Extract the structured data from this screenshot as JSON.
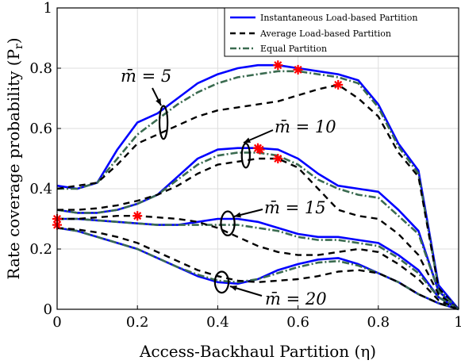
{
  "chart_data": {
    "type": "line",
    "xlabel": "Access-Backhaul Partition (η)",
    "ylabel": "Rate coverage probability (P_r)",
    "ylabel_main": "Rate coverage probability (P",
    "ylabel_sub": "r",
    "ylabel_close": ")",
    "xlim": [
      0,
      1
    ],
    "ylim": [
      0,
      1
    ],
    "xticks": [
      "0",
      "0.2",
      "0.4",
      "0.6",
      "0.8",
      "1"
    ],
    "yticks": [
      "0",
      "0.2",
      "0.4",
      "0.6",
      "0.8",
      "1"
    ],
    "grid": true,
    "legend": {
      "position": "top-right",
      "entries": [
        "Instantaneous Load-based Partition",
        "Average Load-based Partition",
        "Equal Partition"
      ]
    },
    "colors": {
      "instantaneous": "#0000ff",
      "average": "#000000",
      "equal": "#3a6b50",
      "marker": "#ff0000"
    },
    "annotations": [
      {
        "label": "m̄ = 5"
      },
      {
        "label": "m̄ = 10"
      },
      {
        "label": "m̄ = 15"
      },
      {
        "label": "m̄ = 20"
      }
    ],
    "series": [
      {
        "group": "m=5",
        "style": "instantaneous",
        "x": [
          0,
          0.05,
          0.1,
          0.15,
          0.2,
          0.25,
          0.3,
          0.35,
          0.4,
          0.45,
          0.5,
          0.55,
          0.6,
          0.65,
          0.7,
          0.75,
          0.8,
          0.85,
          0.9,
          0.95,
          1
        ],
        "y": [
          0.41,
          0.4,
          0.42,
          0.53,
          0.62,
          0.65,
          0.7,
          0.75,
          0.78,
          0.8,
          0.81,
          0.81,
          0.8,
          0.79,
          0.78,
          0.76,
          0.68,
          0.55,
          0.46,
          0.08,
          0.0
        ]
      },
      {
        "group": "m=5",
        "style": "equal",
        "x": [
          0,
          0.05,
          0.1,
          0.15,
          0.2,
          0.25,
          0.3,
          0.35,
          0.4,
          0.45,
          0.5,
          0.55,
          0.6,
          0.65,
          0.7,
          0.75,
          0.8,
          0.85,
          0.9,
          0.95,
          1
        ],
        "y": [
          0.4,
          0.4,
          0.42,
          0.5,
          0.58,
          0.63,
          0.68,
          0.72,
          0.75,
          0.77,
          0.78,
          0.79,
          0.79,
          0.78,
          0.77,
          0.75,
          0.67,
          0.54,
          0.45,
          0.07,
          0.0
        ]
      },
      {
        "group": "m=5",
        "style": "average",
        "x": [
          0,
          0.05,
          0.1,
          0.15,
          0.2,
          0.25,
          0.3,
          0.35,
          0.4,
          0.45,
          0.5,
          0.55,
          0.6,
          0.65,
          0.7,
          0.75,
          0.8,
          0.85,
          0.9,
          0.95,
          1
        ],
        "y": [
          0.4,
          0.41,
          0.42,
          0.48,
          0.55,
          0.58,
          0.61,
          0.64,
          0.66,
          0.67,
          0.68,
          0.69,
          0.71,
          0.73,
          0.745,
          0.7,
          0.64,
          0.52,
          0.44,
          0.07,
          0.0
        ]
      },
      {
        "group": "m=10",
        "style": "instantaneous",
        "x": [
          0,
          0.05,
          0.1,
          0.15,
          0.2,
          0.25,
          0.3,
          0.35,
          0.4,
          0.45,
          0.5,
          0.55,
          0.6,
          0.65,
          0.7,
          0.75,
          0.8,
          0.85,
          0.9,
          0.95,
          1
        ],
        "y": [
          0.33,
          0.32,
          0.32,
          0.33,
          0.35,
          0.38,
          0.44,
          0.5,
          0.53,
          0.535,
          0.535,
          0.53,
          0.5,
          0.45,
          0.41,
          0.4,
          0.39,
          0.33,
          0.26,
          0.06,
          0.0
        ]
      },
      {
        "group": "m=10",
        "style": "equal",
        "x": [
          0,
          0.05,
          0.1,
          0.15,
          0.2,
          0.25,
          0.3,
          0.35,
          0.4,
          0.45,
          0.5,
          0.55,
          0.6,
          0.65,
          0.7,
          0.75,
          0.8,
          0.85,
          0.9,
          0.95,
          1
        ],
        "y": [
          0.33,
          0.32,
          0.32,
          0.33,
          0.35,
          0.38,
          0.43,
          0.48,
          0.51,
          0.52,
          0.52,
          0.51,
          0.48,
          0.43,
          0.4,
          0.38,
          0.37,
          0.31,
          0.25,
          0.06,
          0.0
        ]
      },
      {
        "group": "m=10",
        "style": "average",
        "x": [
          0,
          0.05,
          0.1,
          0.15,
          0.2,
          0.25,
          0.3,
          0.35,
          0.4,
          0.45,
          0.5,
          0.55,
          0.6,
          0.65,
          0.7,
          0.75,
          0.8,
          0.85,
          0.9,
          0.95,
          1
        ],
        "y": [
          0.33,
          0.33,
          0.335,
          0.345,
          0.36,
          0.38,
          0.41,
          0.45,
          0.48,
          0.49,
          0.5,
          0.5,
          0.47,
          0.4,
          0.33,
          0.31,
          0.3,
          0.25,
          0.18,
          0.05,
          0.0
        ]
      },
      {
        "group": "m=15",
        "style": "instantaneous",
        "x": [
          0,
          0.05,
          0.1,
          0.15,
          0.2,
          0.25,
          0.3,
          0.35,
          0.4,
          0.45,
          0.5,
          0.55,
          0.6,
          0.65,
          0.7,
          0.75,
          0.8,
          0.85,
          0.9,
          0.95,
          1
        ],
        "y": [
          0.3,
          0.3,
          0.295,
          0.29,
          0.285,
          0.28,
          0.28,
          0.29,
          0.3,
          0.3,
          0.29,
          0.27,
          0.25,
          0.24,
          0.24,
          0.23,
          0.22,
          0.18,
          0.13,
          0.04,
          0.0
        ]
      },
      {
        "group": "m=15",
        "style": "equal",
        "x": [
          0,
          0.05,
          0.1,
          0.15,
          0.2,
          0.25,
          0.3,
          0.35,
          0.4,
          0.45,
          0.5,
          0.55,
          0.6,
          0.65,
          0.7,
          0.75,
          0.8,
          0.85,
          0.9,
          0.95,
          1
        ],
        "y": [
          0.3,
          0.3,
          0.295,
          0.29,
          0.285,
          0.28,
          0.28,
          0.28,
          0.28,
          0.28,
          0.27,
          0.26,
          0.24,
          0.23,
          0.23,
          0.22,
          0.21,
          0.17,
          0.12,
          0.04,
          0.0
        ]
      },
      {
        "group": "m=15",
        "style": "average",
        "x": [
          0,
          0.05,
          0.1,
          0.15,
          0.2,
          0.25,
          0.3,
          0.35,
          0.4,
          0.45,
          0.5,
          0.55,
          0.6,
          0.65,
          0.7,
          0.75,
          0.8,
          0.85,
          0.9,
          0.95,
          1
        ],
        "y": [
          0.3,
          0.3,
          0.305,
          0.31,
          0.31,
          0.305,
          0.3,
          0.29,
          0.27,
          0.24,
          0.21,
          0.19,
          0.18,
          0.18,
          0.19,
          0.2,
          0.19,
          0.15,
          0.1,
          0.03,
          0.0
        ]
      },
      {
        "group": "m=20",
        "style": "instantaneous",
        "x": [
          0,
          0.05,
          0.1,
          0.15,
          0.2,
          0.25,
          0.3,
          0.35,
          0.4,
          0.45,
          0.5,
          0.55,
          0.6,
          0.65,
          0.7,
          0.75,
          0.8,
          0.85,
          0.9,
          0.95,
          1
        ],
        "y": [
          0.27,
          0.26,
          0.24,
          0.22,
          0.2,
          0.17,
          0.14,
          0.11,
          0.09,
          0.085,
          0.1,
          0.13,
          0.15,
          0.165,
          0.17,
          0.15,
          0.12,
          0.09,
          0.05,
          0.02,
          0.0
        ]
      },
      {
        "group": "m=20",
        "style": "equal",
        "x": [
          0,
          0.05,
          0.1,
          0.15,
          0.2,
          0.25,
          0.3,
          0.35,
          0.4,
          0.45,
          0.5,
          0.55,
          0.6,
          0.65,
          0.7,
          0.75,
          0.8,
          0.85,
          0.9,
          0.95,
          1
        ],
        "y": [
          0.27,
          0.26,
          0.24,
          0.22,
          0.2,
          0.17,
          0.14,
          0.115,
          0.095,
          0.09,
          0.1,
          0.12,
          0.14,
          0.155,
          0.16,
          0.145,
          0.12,
          0.09,
          0.05,
          0.02,
          0.0
        ]
      },
      {
        "group": "m=20",
        "style": "average",
        "x": [
          0,
          0.05,
          0.1,
          0.15,
          0.2,
          0.25,
          0.3,
          0.35,
          0.4,
          0.45,
          0.5,
          0.55,
          0.6,
          0.65,
          0.7,
          0.75,
          0.8,
          0.85,
          0.9,
          0.95,
          1
        ],
        "y": [
          0.27,
          0.265,
          0.255,
          0.24,
          0.22,
          0.19,
          0.16,
          0.13,
          0.11,
          0.095,
          0.09,
          0.095,
          0.1,
          0.11,
          0.125,
          0.13,
          0.12,
          0.09,
          0.05,
          0.02,
          0.0
        ]
      }
    ],
    "markers": [
      {
        "x": 0.55,
        "y": 0.81
      },
      {
        "x": 0.6,
        "y": 0.795
      },
      {
        "x": 0.7,
        "y": 0.745
      },
      {
        "x": 0.5,
        "y": 0.535
      },
      {
        "x": 0.505,
        "y": 0.53
      },
      {
        "x": 0.55,
        "y": 0.5
      },
      {
        "x": 0.0,
        "y": 0.3
      },
      {
        "x": 0.0,
        "y": 0.28
      },
      {
        "x": 0.2,
        "y": 0.31
      }
    ],
    "ellipses": [
      {
        "group": "m=5",
        "cx": 0.265,
        "cy": 0.62,
        "rx": 0.01,
        "ry": 0.055
      },
      {
        "group": "m=10",
        "cx": 0.47,
        "cy": 0.51,
        "rx": 0.01,
        "ry": 0.04
      },
      {
        "group": "m=15",
        "cx": 0.425,
        "cy": 0.285,
        "rx": 0.017,
        "ry": 0.04
      },
      {
        "group": "m=20",
        "cx": 0.41,
        "cy": 0.09,
        "rx": 0.017,
        "ry": 0.035
      }
    ]
  }
}
